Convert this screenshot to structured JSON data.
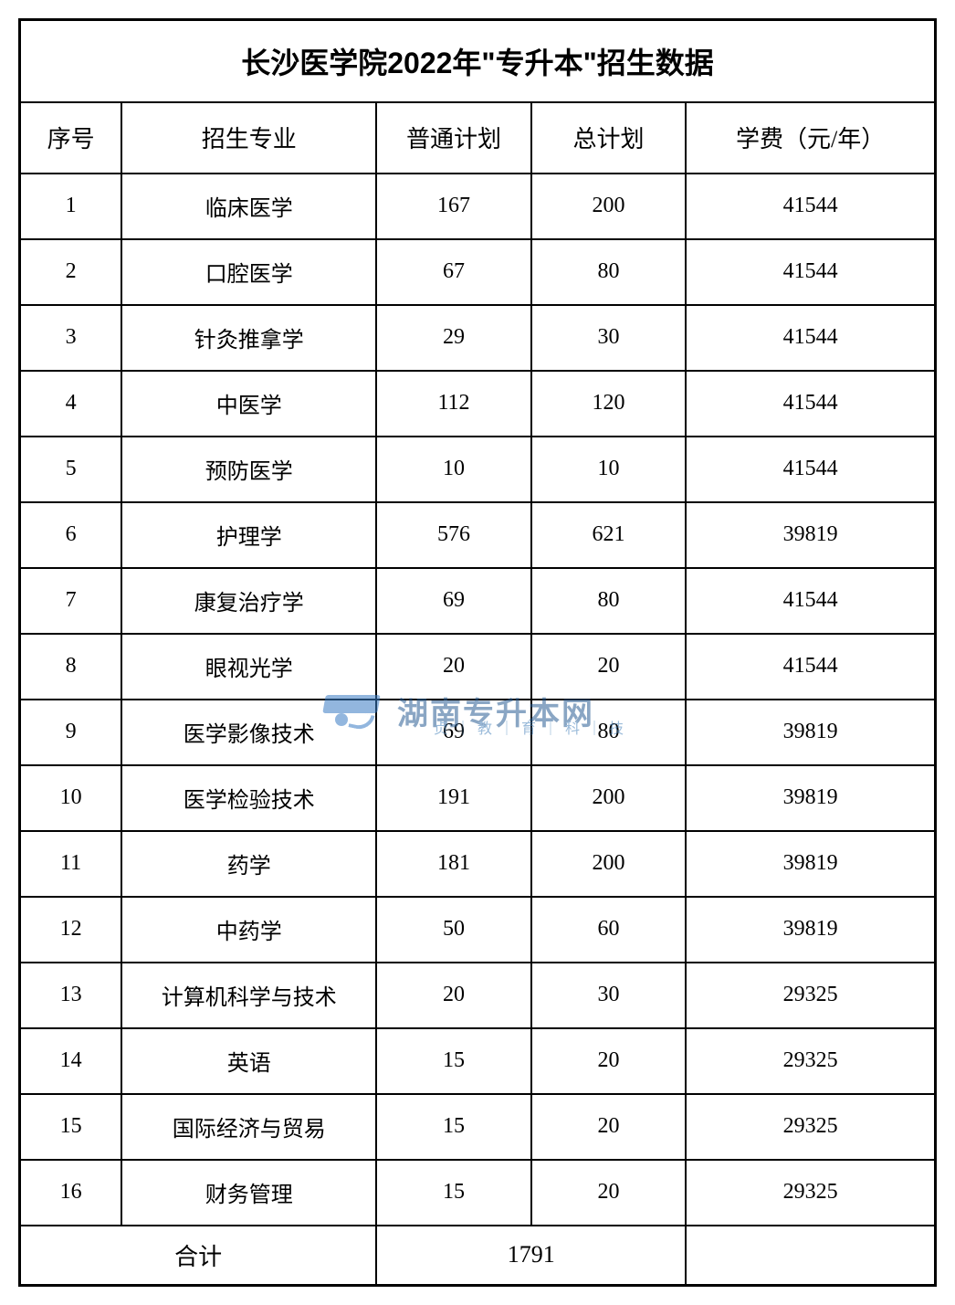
{
  "table": {
    "title": "长沙医学院2022年\"专升本\"招生数据",
    "columns": [
      "序号",
      "招生专业",
      "普通计划",
      "总计划",
      "学费（元/年）"
    ],
    "rows": [
      {
        "seq": "1",
        "major": "临床医学",
        "normal": "167",
        "total": "200",
        "fee": "41544"
      },
      {
        "seq": "2",
        "major": "口腔医学",
        "normal": "67",
        "total": "80",
        "fee": "41544"
      },
      {
        "seq": "3",
        "major": "针灸推拿学",
        "normal": "29",
        "total": "30",
        "fee": "41544"
      },
      {
        "seq": "4",
        "major": "中医学",
        "normal": "112",
        "total": "120",
        "fee": "41544"
      },
      {
        "seq": "5",
        "major": "预防医学",
        "normal": "10",
        "total": "10",
        "fee": "41544"
      },
      {
        "seq": "6",
        "major": "护理学",
        "normal": "576",
        "total": "621",
        "fee": "39819"
      },
      {
        "seq": "7",
        "major": "康复治疗学",
        "normal": "69",
        "total": "80",
        "fee": "41544"
      },
      {
        "seq": "8",
        "major": "眼视光学",
        "normal": "20",
        "total": "20",
        "fee": "41544"
      },
      {
        "seq": "9",
        "major": "医学影像技术",
        "normal": "69",
        "total": "80",
        "fee": "39819"
      },
      {
        "seq": "10",
        "major": "医学检验技术",
        "normal": "191",
        "total": "200",
        "fee": "39819"
      },
      {
        "seq": "11",
        "major": "药学",
        "normal": "181",
        "total": "200",
        "fee": "39819"
      },
      {
        "seq": "12",
        "major": "中药学",
        "normal": "50",
        "total": "60",
        "fee": "39819"
      },
      {
        "seq": "13",
        "major": "计算机科学与技术",
        "normal": "20",
        "total": "30",
        "fee": "29325"
      },
      {
        "seq": "14",
        "major": "英语",
        "normal": "15",
        "total": "20",
        "fee": "29325"
      },
      {
        "seq": "15",
        "major": "国际经济与贸易",
        "normal": "15",
        "total": "20",
        "fee": "29325"
      },
      {
        "seq": "16",
        "major": "财务管理",
        "normal": "15",
        "total": "20",
        "fee": "29325"
      }
    ],
    "total_label": "合计",
    "total_value": "1791",
    "border_color": "#000000",
    "background_color": "#ffffff",
    "text_color": "#000000",
    "title_fontsize": 32,
    "header_fontsize": 26,
    "cell_fontsize": 24,
    "col_widths": {
      "seq": 112,
      "major": 280,
      "normal": 170,
      "total": 170,
      "fee": 274
    }
  },
  "watermark": {
    "main_text": "湖南专升本网",
    "sub_text": "贞｜教｜育｜科｜技",
    "color_dark": "#2b5f94",
    "color_light": "#4a85bc",
    "icon_color": "#3a7cc4"
  }
}
